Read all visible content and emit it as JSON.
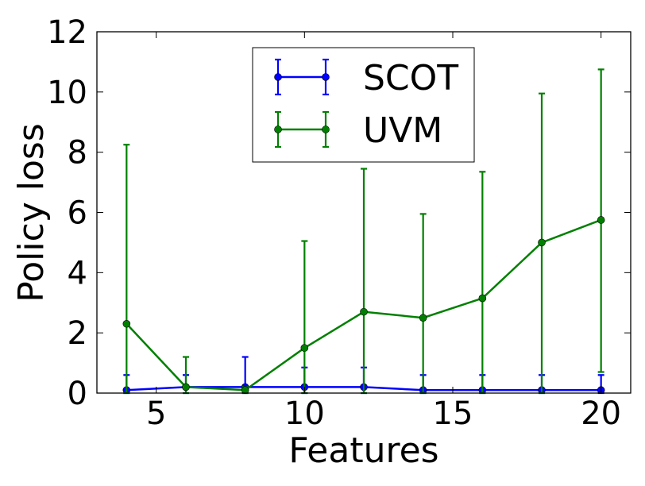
{
  "chart_data": {
    "type": "line",
    "title": "",
    "xlabel": "Features",
    "ylabel": "Policy loss",
    "xlim": [
      3,
      21
    ],
    "ylim": [
      0,
      12
    ],
    "xticks": [
      "5",
      "10",
      "15",
      "20"
    ],
    "yticks": [
      "0",
      "2",
      "4",
      "6",
      "8",
      "10",
      "12"
    ],
    "grid": false,
    "legend_position": "top-center",
    "x": [
      4,
      6,
      8,
      10,
      12,
      14,
      16,
      18,
      20
    ],
    "series": [
      {
        "name": "SCOT",
        "color": "#0000ff",
        "values": [
          0.1,
          0.2,
          0.2,
          0.2,
          0.2,
          0.1,
          0.1,
          0.1,
          0.1
        ],
        "err_upper": [
          0.6,
          0.6,
          1.2,
          0.85,
          0.85,
          0.6,
          0.6,
          0.6,
          0.6
        ],
        "err_lower": [
          0.0,
          0.0,
          0.0,
          0.0,
          0.0,
          0.0,
          0.0,
          0.0,
          0.0
        ]
      },
      {
        "name": "UVM",
        "color": "#008000",
        "values": [
          2.3,
          0.2,
          0.1,
          1.5,
          2.7,
          2.5,
          3.15,
          5.0,
          5.75
        ],
        "err_upper": [
          8.25,
          1.2,
          0.2,
          5.05,
          7.45,
          5.95,
          7.35,
          9.95,
          10.75
        ],
        "err_lower": [
          0.0,
          0.0,
          0.0,
          0.0,
          0.0,
          0.0,
          0.0,
          0.0,
          0.7
        ]
      }
    ]
  }
}
